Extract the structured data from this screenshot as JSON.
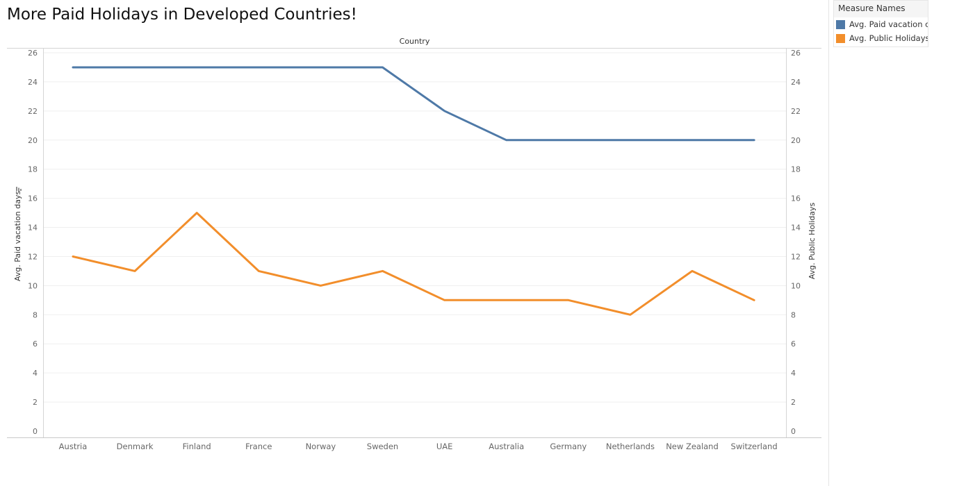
{
  "title": "More Paid Holidays in Developed Countries!",
  "chart_data": {
    "type": "line",
    "title": "More Paid Holidays in Developed Countries!",
    "xlabel": "Country",
    "ylabel": "Avg. Paid vacation days",
    "ylabel_right": "Avg. Public Holidays",
    "ylim": [
      0,
      26
    ],
    "yticks": [
      0,
      2,
      4,
      6,
      8,
      10,
      12,
      14,
      16,
      18,
      20,
      22,
      24,
      26
    ],
    "categories": [
      "Austria",
      "Denmark",
      "Finland",
      "France",
      "Norway",
      "Sweden",
      "UAE",
      "Australia",
      "Germany",
      "Netherlands",
      "New Zealand",
      "Switzerland"
    ],
    "series": [
      {
        "name": "Avg. Paid vacation days",
        "legend_label": "Avg. Paid vacation c",
        "color": "#4e79a7",
        "values": [
          25,
          25,
          25,
          25,
          25,
          25,
          22,
          20,
          20,
          20,
          20,
          20
        ]
      },
      {
        "name": "Avg. Public Holidays",
        "legend_label": "Avg. Public Holidays",
        "color": "#f28e2b",
        "values": [
          12,
          11,
          15,
          11,
          10,
          11,
          9,
          9,
          9,
          8,
          11,
          9
        ]
      }
    ]
  },
  "legend": {
    "title": "Measure Names"
  }
}
